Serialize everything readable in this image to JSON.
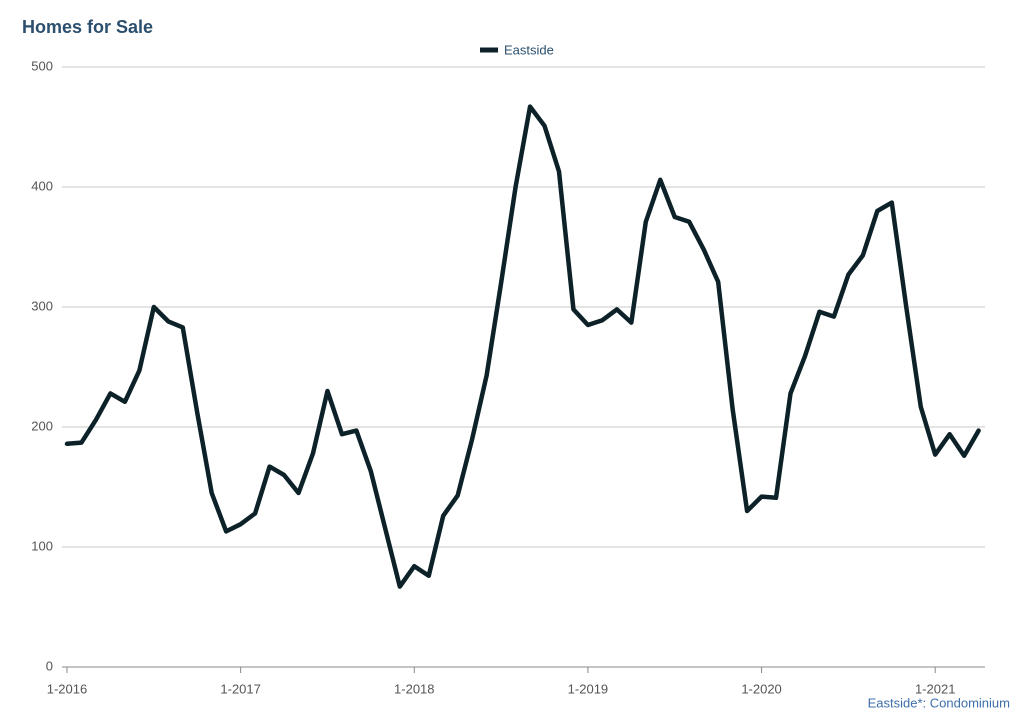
{
  "chart_data": {
    "type": "line",
    "title": "Homes for Sale",
    "footnote": "Eastside*: Condominium",
    "categories": [
      "1-2016",
      null,
      null,
      null,
      null,
      null,
      null,
      null,
      null,
      null,
      null,
      null,
      "1-2017",
      null,
      null,
      null,
      null,
      null,
      null,
      null,
      null,
      null,
      null,
      null,
      "1-2018",
      null,
      null,
      null,
      null,
      null,
      null,
      null,
      null,
      null,
      null,
      null,
      "1-2019",
      null,
      null,
      null,
      null,
      null,
      null,
      null,
      null,
      null,
      null,
      null,
      "1-2020",
      null,
      null,
      null,
      null,
      null,
      null,
      null,
      null,
      null,
      null,
      null,
      "1-2021",
      null,
      null,
      null
    ],
    "series": [
      {
        "name": "Eastside",
        "color": "#0d2228",
        "values": [
          186,
          187,
          206,
          228,
          221,
          247,
          300,
          288,
          283,
          212,
          145,
          113,
          119,
          128,
          167,
          160,
          145,
          178,
          230,
          194,
          197,
          163,
          115,
          67,
          84,
          76,
          126,
          143,
          190,
          243,
          320,
          400,
          467,
          451,
          413,
          298,
          285,
          289,
          298,
          287,
          371,
          406,
          375,
          371,
          348,
          321,
          215,
          130,
          142,
          141,
          228,
          259,
          296,
          292,
          327,
          343,
          380,
          387,
          300,
          217,
          177,
          194,
          176,
          197
        ]
      }
    ],
    "ylim": [
      0,
      500
    ],
    "yticks": [
      0,
      100,
      200,
      300,
      400,
      500
    ],
    "grid": true,
    "legend": "top"
  }
}
